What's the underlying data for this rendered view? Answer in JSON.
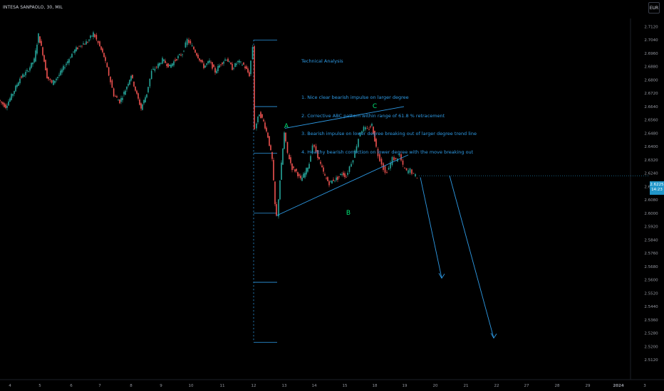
{
  "header": {
    "symbol": "INTESA SANPAOLO, 30, MIL",
    "currency_button": "EUR",
    "menu_icon": "dots-icon"
  },
  "annotation": {
    "title": "Technical Analysis",
    "lines": [
      "1. Nice clear bearish impulse on larger degree",
      "2. Corrective ABC pattern within range of 61.8 % retracement",
      "3. Bearish impulse on lower degree breaking out of larger degree trend line",
      "4. Healthy bearish correction on lower degree with the move breaking out"
    ]
  },
  "last_price": {
    "value": "2.6225",
    "sub": "14:23"
  },
  "colors": {
    "up": "#26a69a",
    "down": "#ef5350",
    "drawing": "#2e9be6",
    "label": "#00e676",
    "price_tag": "#2196c9"
  },
  "chart_data": {
    "type": "candlestick",
    "title": "",
    "y_ticks": [
      "2.7120",
      "2.7040",
      "2.6960",
      "2.6880",
      "2.6800",
      "2.6720",
      "2.6640",
      "2.6560",
      "2.6480",
      "2.6400",
      "2.6320",
      "2.6240",
      "2.6160",
      "2.6080",
      "2.6000",
      "2.5920",
      "2.5840",
      "2.5760",
      "2.5680",
      "2.5600",
      "2.5520",
      "2.5440",
      "2.5360",
      "2.5280",
      "2.5200",
      "2.5120"
    ],
    "ylim": [
      2.5115,
      2.7125
    ],
    "x_ticks": [
      "4",
      "5",
      "6",
      "7",
      "8",
      "9",
      "10",
      "11",
      "12",
      "13",
      "14",
      "15",
      "18",
      "19",
      "20",
      "21",
      "22",
      "27",
      "28",
      "29",
      "2024",
      "3",
      "4",
      "5"
    ],
    "wave_labels": [
      "A",
      "B",
      "C"
    ],
    "path": [
      [
        0,
        2.668
      ],
      [
        10,
        2.664
      ],
      [
        20,
        2.672
      ],
      [
        30,
        2.681
      ],
      [
        40,
        2.685
      ],
      [
        50,
        2.692
      ],
      [
        56,
        2.707
      ],
      [
        62,
        2.696
      ],
      [
        68,
        2.682
      ],
      [
        75,
        2.678
      ],
      [
        85,
        2.683
      ],
      [
        95,
        2.69
      ],
      [
        105,
        2.697
      ],
      [
        115,
        2.701
      ],
      [
        125,
        2.703
      ],
      [
        133,
        2.708
      ],
      [
        140,
        2.702
      ],
      [
        148,
        2.694
      ],
      [
        155,
        2.683
      ],
      [
        162,
        2.671
      ],
      [
        170,
        2.667
      ],
      [
        178,
        2.674
      ],
      [
        186,
        2.683
      ],
      [
        194,
        2.671
      ],
      [
        200,
        2.663
      ],
      [
        208,
        2.672
      ],
      [
        215,
        2.685
      ],
      [
        222,
        2.688
      ],
      [
        230,
        2.692
      ],
      [
        240,
        2.688
      ],
      [
        250,
        2.693
      ],
      [
        258,
        2.696
      ],
      [
        265,
        2.704
      ],
      [
        272,
        2.7
      ],
      [
        280,
        2.694
      ],
      [
        288,
        2.688
      ],
      [
        296,
        2.691
      ],
      [
        304,
        2.685
      ],
      [
        312,
        2.69
      ],
      [
        320,
        2.693
      ],
      [
        328,
        2.687
      ],
      [
        336,
        2.691
      ],
      [
        344,
        2.689
      ],
      [
        352,
        2.683
      ],
      [
        357,
        2.7
      ],
      [
        360,
        2.651
      ],
      [
        366,
        2.66
      ],
      [
        372,
        2.655
      ],
      [
        378,
        2.646
      ],
      [
        384,
        2.632
      ],
      [
        388,
        2.605
      ],
      [
        391,
        2.598
      ],
      [
        395,
        2.62
      ],
      [
        401,
        2.648
      ],
      [
        406,
        2.636
      ],
      [
        412,
        2.627
      ],
      [
        418,
        2.625
      ],
      [
        424,
        2.62
      ],
      [
        430,
        2.624
      ],
      [
        436,
        2.63
      ],
      [
        441,
        2.641
      ],
      [
        446,
        2.637
      ],
      [
        452,
        2.629
      ],
      [
        458,
        2.622
      ],
      [
        464,
        2.618
      ],
      [
        470,
        2.62
      ],
      [
        476,
        2.621
      ],
      [
        482,
        2.624
      ],
      [
        488,
        2.622
      ],
      [
        493,
        2.628
      ],
      [
        498,
        2.633
      ],
      [
        503,
        2.641
      ],
      [
        508,
        2.649
      ],
      [
        513,
        2.651
      ],
      [
        518,
        2.65
      ],
      [
        524,
        2.653
      ],
      [
        528,
        2.644
      ],
      [
        533,
        2.635
      ],
      [
        538,
        2.63
      ],
      [
        543,
        2.624
      ],
      [
        548,
        2.627
      ],
      [
        553,
        2.633
      ],
      [
        558,
        2.632
      ],
      [
        563,
        2.635
      ],
      [
        568,
        2.628
      ],
      [
        573,
        2.625
      ],
      [
        578,
        2.626
      ],
      [
        583,
        2.623
      ],
      [
        588,
        2.622
      ]
    ],
    "trend_lines": [
      {
        "name": "upper-channel",
        "points": [
          [
            400,
            2.651
          ],
          [
            567,
            2.664
          ]
        ]
      },
      {
        "name": "lower-channel",
        "points": [
          [
            388,
            2.5985
          ],
          [
            573,
            2.635
          ]
        ]
      },
      {
        "name": "projection-1",
        "points": [
          [
            590,
            2.6215
          ],
          [
            620,
            2.561
          ]
        ]
      },
      {
        "name": "projection-2",
        "points": [
          [
            631,
            2.6225
          ],
          [
            693,
            2.525
          ]
        ]
      }
    ],
    "fib_levels": [
      2.704,
      2.664,
      2.636,
      2.6,
      2.5585,
      2.5225
    ]
  }
}
